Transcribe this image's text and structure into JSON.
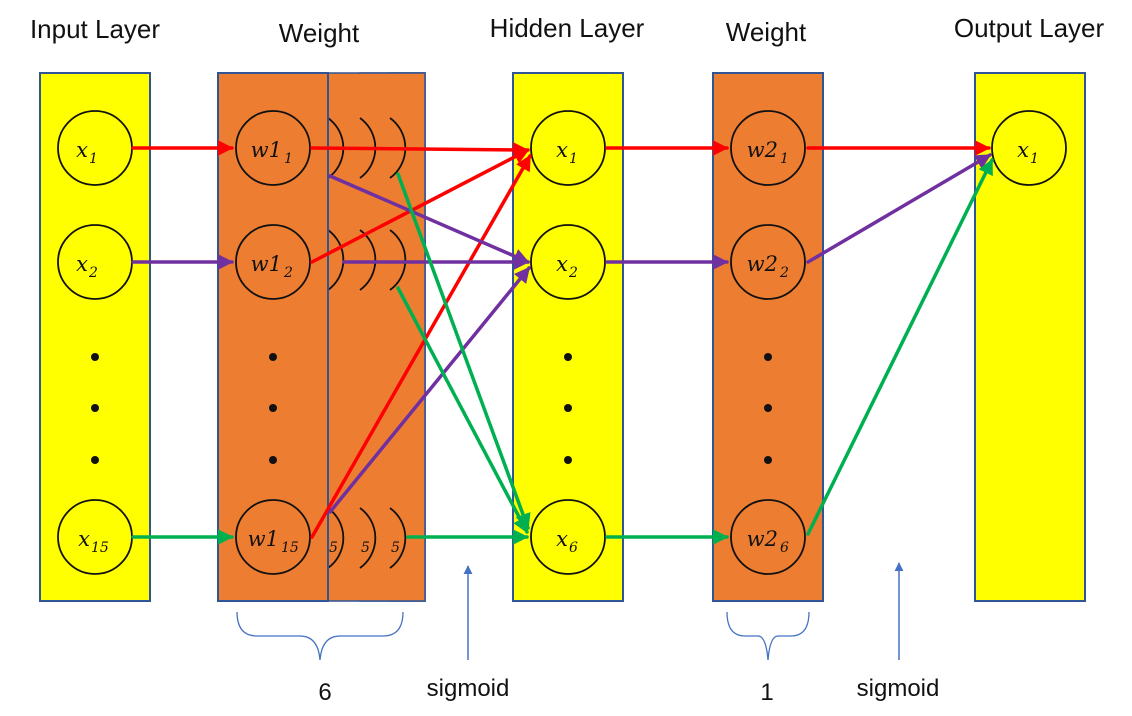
{
  "titles": {
    "input": "Input Layer",
    "weight1": "Weight",
    "hidden": "Hidden Layer",
    "weight2": "Weight",
    "output": "Output Layer"
  },
  "input_nodes": [
    {
      "base": "x",
      "sub": "1"
    },
    {
      "base": "x",
      "sub": "2"
    },
    {
      "base": "x",
      "sub": "15"
    }
  ],
  "weight1_nodes": [
    {
      "base": "w1",
      "sub": "1"
    },
    {
      "base": "w1",
      "sub": "2"
    },
    {
      "base": "w1",
      "sub": "15"
    }
  ],
  "weight1_back_sheet_fragments": [
    "5",
    "5",
    "5"
  ],
  "hidden_nodes": [
    {
      "base": "x",
      "sub": "1"
    },
    {
      "base": "x",
      "sub": "2"
    },
    {
      "base": "x",
      "sub": "6"
    }
  ],
  "weight2_nodes": [
    {
      "base": "w2",
      "sub": "1"
    },
    {
      "base": "w2",
      "sub": "2"
    },
    {
      "base": "w2",
      "sub": "6"
    }
  ],
  "output_nodes": [
    {
      "base": "x",
      "sub": "1"
    }
  ],
  "brackets": {
    "weight1_count": "6",
    "weight2_count": "1"
  },
  "activations": {
    "hidden": "sigmoid",
    "output": "sigmoid"
  },
  "colors": {
    "layer_fill": "#ffff00",
    "weight_fill": "#ed7d31",
    "border": "#2f5597",
    "red": "#ff0000",
    "purple": "#7030a0",
    "green": "#00b050",
    "pointer": "#4472c4"
  }
}
